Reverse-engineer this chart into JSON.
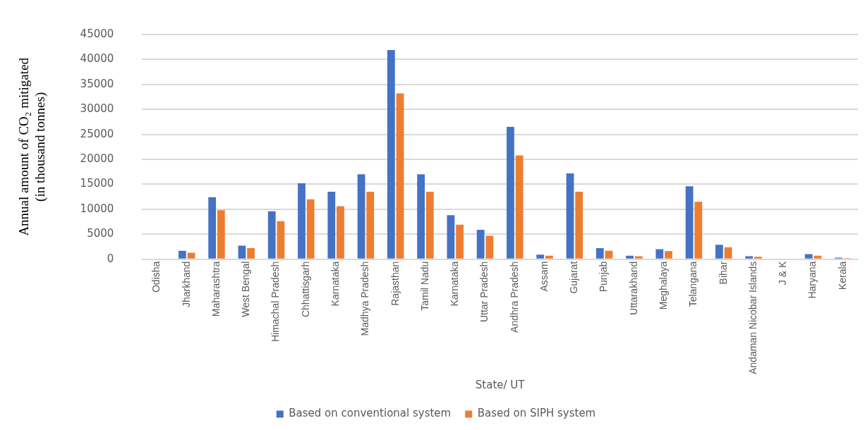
{
  "chart_data": {
    "type": "bar",
    "xlabel": "State/ UT",
    "ylabel": "Annual amount of CO₂ mitigated\n(in thousand tonnes)",
    "categories": [
      "Odisha",
      "Jharkhand",
      "Maharashtra",
      "West Bengal",
      "Himachal Pradesh",
      "Chhattisgarh",
      "Karnataka",
      "Madhya Pradesh",
      "Rajasthan",
      "Tamil Nadu",
      "Karnataka",
      "Uttar Pradesh",
      "Andhra Pradesh",
      "Assam",
      "Gujarat",
      "Punjab",
      "Uttarakhand",
      "Meghalaya",
      "Telangana",
      "Bihar",
      "Andaman Nicobar Islands",
      "J & K",
      "Haryana",
      "Kerala"
    ],
    "series": [
      {
        "name": "Based on conventional system",
        "color": "#4472c4",
        "values": [
          0,
          1700,
          12400,
          2700,
          9600,
          15200,
          13500,
          17000,
          41900,
          17000,
          8800,
          5900,
          26500,
          900,
          17200,
          2200,
          700,
          2000,
          14600,
          2900,
          600,
          0,
          1000,
          300
        ]
      },
      {
        "name": "Based on SIPH system",
        "color": "#ed7d31",
        "values": [
          0,
          1300,
          9800,
          2200,
          7600,
          12000,
          10600,
          13500,
          33200,
          13500,
          6900,
          4700,
          20800,
          700,
          13500,
          1700,
          600,
          1600,
          11500,
          2400,
          500,
          0,
          700,
          200
        ]
      }
    ],
    "ylim": [
      0,
      45000
    ],
    "yticks": [
      0,
      5000,
      10000,
      15000,
      20000,
      25000,
      30000,
      35000,
      40000,
      45000
    ],
    "grid": "y",
    "legend": "bottom"
  }
}
